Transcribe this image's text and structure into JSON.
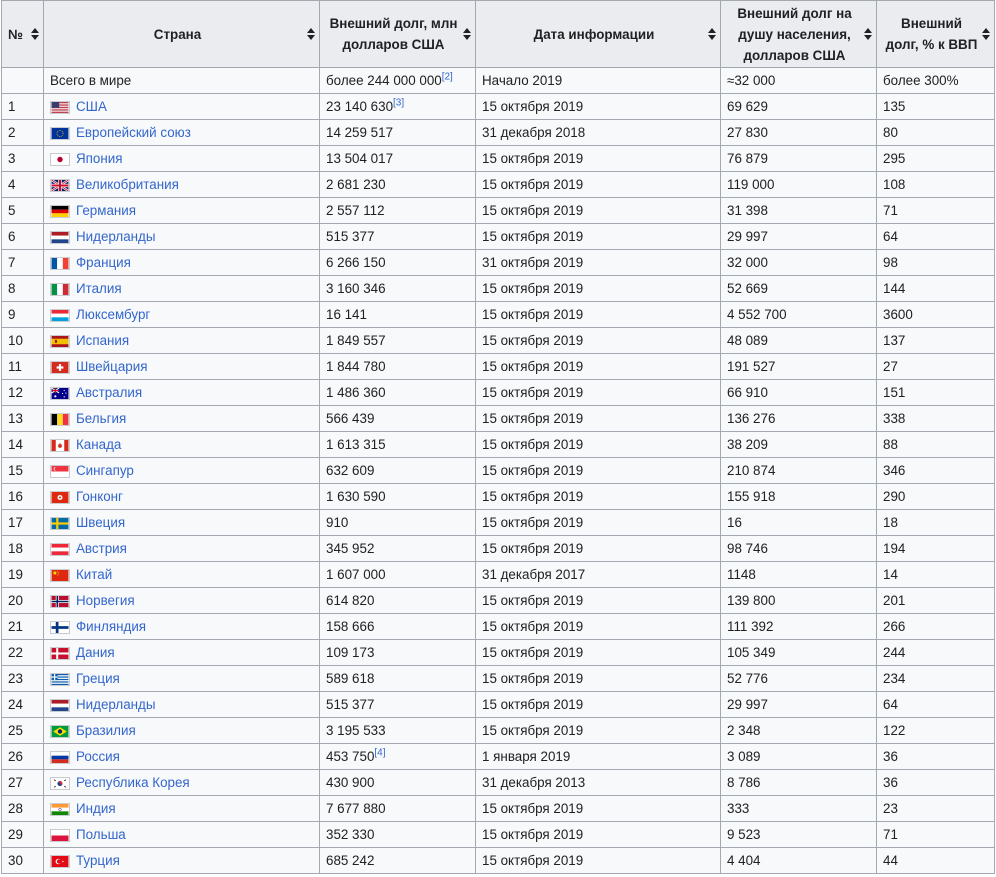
{
  "headers": {
    "num": "№",
    "country": "Страна",
    "debt": "Внешний долг, млн долларов США",
    "date": "Дата информации",
    "per_capita": "Внешний долг на душу населения, долларов США",
    "gdp": "Внешний долг, % к ВВП"
  },
  "total": {
    "label": "Всего в мире",
    "debt": "более 244 000 000",
    "debt_ref": "[2]",
    "date": "Начало 2019",
    "per_capita": "≈32 000",
    "gdp": "более 300%"
  },
  "rows": [
    {
      "n": "1",
      "country": "США",
      "flag": "us-flag",
      "debt": "23 140 630",
      "ref": "[3]",
      "date": "15 октября 2019",
      "pc": "69 629",
      "gdp": "135"
    },
    {
      "n": "2",
      "country": "Европейский союз",
      "flag": "eu-flag",
      "debt": "14 259 517",
      "ref": "",
      "date": "31 декабря 2018",
      "pc": "27 830",
      "gdp": "80"
    },
    {
      "n": "3",
      "country": "Япония",
      "flag": "jp-flag",
      "debt": "13 504 017",
      "ref": "",
      "date": "15 октября 2019",
      "pc": "76 879",
      "gdp": "295"
    },
    {
      "n": "4",
      "country": "Великобритания",
      "flag": "gb-flag",
      "debt": "2 681 230",
      "ref": "",
      "date": "15 октября 2019",
      "pc": "119 000",
      "gdp": "108"
    },
    {
      "n": "5",
      "country": "Германия",
      "flag": "de-flag",
      "debt": "2 557 112",
      "ref": "",
      "date": "15 октября 2019",
      "pc": "31 398",
      "gdp": "71"
    },
    {
      "n": "6",
      "country": "Нидерланды",
      "flag": "nl-flag",
      "debt": "515 377",
      "ref": "",
      "date": "15 октября 2019",
      "pc": "29 997",
      "gdp": "64"
    },
    {
      "n": "7",
      "country": "Франция",
      "flag": "fr-flag",
      "debt": "6 266 150",
      "ref": "",
      "date": "31 октября 2019",
      "pc": "32 000",
      "gdp": "98"
    },
    {
      "n": "8",
      "country": "Италия",
      "flag": "it-flag",
      "debt": "3 160 346",
      "ref": "",
      "date": "15 октября 2019",
      "pc": "52 669",
      "gdp": "144"
    },
    {
      "n": "9",
      "country": "Люксембург",
      "flag": "lu-flag",
      "debt": "16 141",
      "ref": "",
      "date": "15 октября 2019",
      "pc": "4 552 700",
      "gdp": "3600"
    },
    {
      "n": "10",
      "country": "Испания",
      "flag": "es-flag",
      "debt": "1 849 557",
      "ref": "",
      "date": "15 октября 2019",
      "pc": "48 089",
      "gdp": "137"
    },
    {
      "n": "11",
      "country": "Швейцария",
      "flag": "ch-flag",
      "debt": "1 844 780",
      "ref": "",
      "date": "15 октября 2019",
      "pc": "191 527",
      "gdp": "27"
    },
    {
      "n": "12",
      "country": "Австралия",
      "flag": "au-flag",
      "debt": "1 486 360",
      "ref": "",
      "date": "15 октября 2019",
      "pc": "66 910",
      "gdp": "151"
    },
    {
      "n": "13",
      "country": "Бельгия",
      "flag": "be-flag",
      "debt": "566 439",
      "ref": "",
      "date": "15 октября 2019",
      "pc": "136 276",
      "gdp": "338"
    },
    {
      "n": "14",
      "country": "Канада",
      "flag": "ca-flag",
      "debt": "1 613 315",
      "ref": "",
      "date": "15 октября 2019",
      "pc": "38 209",
      "gdp": "88"
    },
    {
      "n": "15",
      "country": "Сингапур",
      "flag": "sg-flag",
      "debt": "632 609",
      "ref": "",
      "date": "15 октября 2019",
      "pc": "210 874",
      "gdp": "346"
    },
    {
      "n": "16",
      "country": "Гонконг",
      "flag": "hk-flag",
      "debt": "1 630 590",
      "ref": "",
      "date": "15 октября 2019",
      "pc": "155 918",
      "gdp": "290"
    },
    {
      "n": "17",
      "country": "Швеция",
      "flag": "se-flag",
      "debt": "910",
      "ref": "",
      "date": "15 октября 2019",
      "pc": "16",
      "gdp": "18"
    },
    {
      "n": "18",
      "country": "Австрия",
      "flag": "at-flag",
      "debt": "345 952",
      "ref": "",
      "date": "15 октября 2019",
      "pc": "98 746",
      "gdp": "194"
    },
    {
      "n": "19",
      "country": "Китай",
      "flag": "cn-flag",
      "debt": "1 607 000",
      "ref": "",
      "date": "31 декабря 2017",
      "pc": "1148",
      "gdp": "14"
    },
    {
      "n": "20",
      "country": "Норвегия",
      "flag": "no-flag",
      "debt": "614 820",
      "ref": "",
      "date": "15 октября 2019",
      "pc": "139 800",
      "gdp": "201"
    },
    {
      "n": "21",
      "country": "Финляндия",
      "flag": "fi-flag",
      "debt": "158 666",
      "ref": "",
      "date": "15 октября 2019",
      "pc": "111 392",
      "gdp": "266"
    },
    {
      "n": "22",
      "country": "Дания",
      "flag": "dk-flag",
      "debt": "109 173",
      "ref": "",
      "date": "15 октября 2019",
      "pc": "105 349",
      "gdp": "244"
    },
    {
      "n": "23",
      "country": "Греция",
      "flag": "gr-flag",
      "debt": "589 618",
      "ref": "",
      "date": "15 октября 2019",
      "pc": "52 776",
      "gdp": "234"
    },
    {
      "n": "24",
      "country": "Нидерланды",
      "flag": "nl-flag",
      "debt": "515 377",
      "ref": "",
      "date": "15 октября 2019",
      "pc": "29 997",
      "gdp": "64"
    },
    {
      "n": "25",
      "country": "Бразилия",
      "flag": "br-flag",
      "debt": "3 195 533",
      "ref": "",
      "date": "15 октября 2019",
      "pc": "2 348",
      "gdp": "122"
    },
    {
      "n": "26",
      "country": "Россия",
      "flag": "ru-flag",
      "debt": "453 750",
      "ref": "[4]",
      "date": "1 января 2019",
      "pc": "3 089",
      "gdp": "36"
    },
    {
      "n": "27",
      "country": "Республика Корея",
      "flag": "kr-flag",
      "debt": "430 900",
      "ref": "",
      "date": "31 декабря 2013",
      "pc": "8 786",
      "gdp": "36"
    },
    {
      "n": "28",
      "country": "Индия",
      "flag": "in-flag",
      "debt": "7 677 880",
      "ref": "",
      "date": "15 октября 2019",
      "pc": "333",
      "gdp": "23"
    },
    {
      "n": "29",
      "country": "Польша",
      "flag": "pl-flag",
      "debt": "352 330",
      "ref": "",
      "date": "15 октября 2019",
      "pc": "9 523",
      "gdp": "71"
    },
    {
      "n": "30",
      "country": "Турция",
      "flag": "tr-flag",
      "debt": "685 242",
      "ref": "",
      "date": "15 октября 2019",
      "pc": "4 404",
      "gdp": "44"
    }
  ],
  "colors": {
    "link": "#3366cc",
    "header_bg": "#eaecf0",
    "cell_bg": "#f8f9fa",
    "border": "#a2a9b1"
  }
}
